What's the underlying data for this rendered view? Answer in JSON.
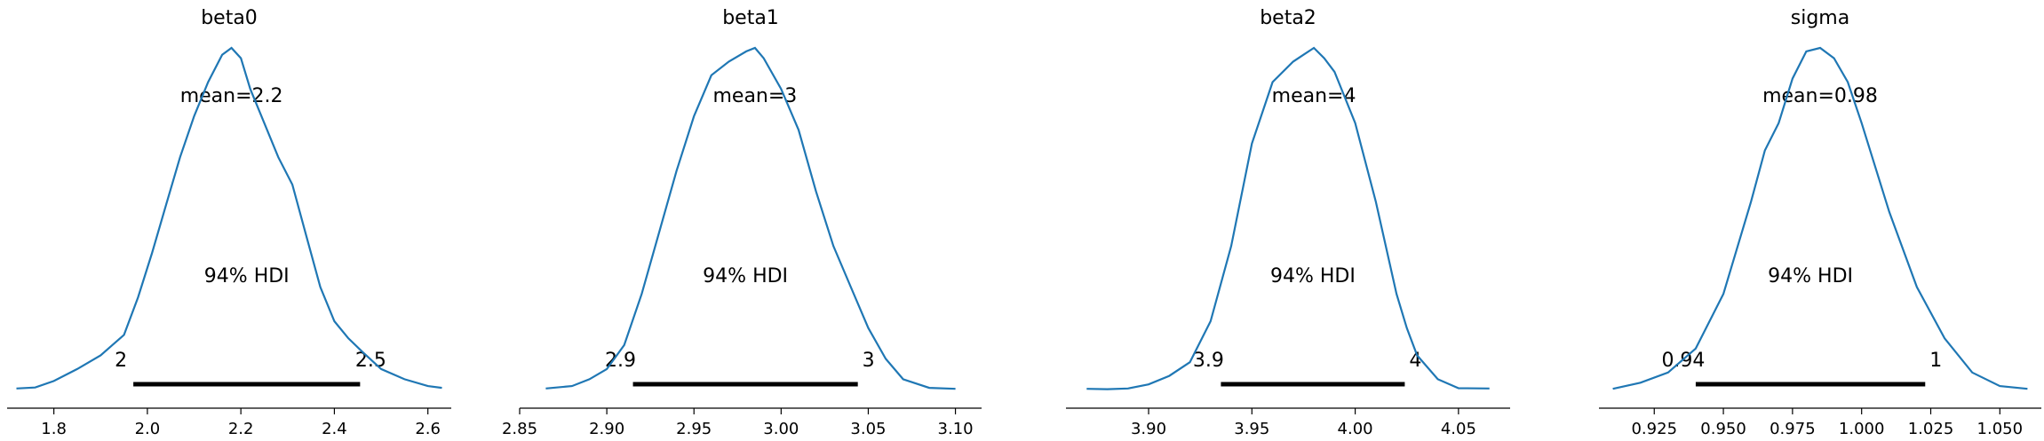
{
  "chart_data": [
    {
      "type": "line",
      "title": "beta0",
      "mean_label": "mean=2.2",
      "hdi_label": "94% HDI",
      "hdi": [
        1.97,
        2.455
      ],
      "hdi_low_label": "2",
      "hdi_high_label": "2.5",
      "xlim": [
        1.7,
        2.65
      ],
      "xticks": [
        1.8,
        2.0,
        2.2,
        2.4,
        2.6
      ],
      "xtick_labels": [
        "1.8",
        "2.0",
        "2.2",
        "2.4",
        "2.6"
      ],
      "density_x": [
        1.72,
        1.76,
        1.8,
        1.85,
        1.9,
        1.95,
        1.98,
        2.01,
        2.04,
        2.07,
        2.1,
        2.13,
        2.16,
        2.18,
        2.2,
        2.22,
        2.25,
        2.28,
        2.31,
        2.34,
        2.37,
        2.4,
        2.43,
        2.46,
        2.5,
        2.55,
        2.6,
        2.63
      ],
      "density_y": [
        0.003,
        0.006,
        0.025,
        0.06,
        0.1,
        0.16,
        0.27,
        0.4,
        0.54,
        0.68,
        0.8,
        0.9,
        0.98,
        1.0,
        0.97,
        0.88,
        0.78,
        0.68,
        0.6,
        0.45,
        0.3,
        0.2,
        0.15,
        0.11,
        0.06,
        0.03,
        0.01,
        0.005
      ]
    },
    {
      "type": "line",
      "title": "beta1",
      "mean_label": "mean=3",
      "hdi_label": "94% HDI",
      "hdi": [
        2.915,
        3.044
      ],
      "hdi_low_label": "2.9",
      "hdi_high_label": "3",
      "xlim": [
        2.85,
        3.115
      ],
      "xticks": [
        2.85,
        2.9,
        2.95,
        3.0,
        3.05,
        3.1
      ],
      "xtick_labels": [
        "2.85",
        "2.90",
        "2.95",
        "3.00",
        "3.05",
        "3.10"
      ],
      "density_x": [
        2.865,
        2.88,
        2.89,
        2.9,
        2.91,
        2.92,
        2.93,
        2.94,
        2.95,
        2.96,
        2.97,
        2.98,
        2.985,
        2.99,
        3.0,
        3.01,
        3.02,
        3.03,
        3.04,
        3.05,
        3.06,
        3.07,
        3.085,
        3.1
      ],
      "density_y": [
        0.003,
        0.01,
        0.03,
        0.06,
        0.13,
        0.28,
        0.46,
        0.64,
        0.8,
        0.92,
        0.96,
        0.99,
        1.0,
        0.97,
        0.88,
        0.76,
        0.58,
        0.42,
        0.3,
        0.18,
        0.09,
        0.03,
        0.005,
        0.002
      ]
    },
    {
      "type": "line",
      "title": "beta2",
      "mean_label": "mean=4",
      "hdi_label": "94% HDI",
      "hdi": [
        3.935,
        4.024
      ],
      "hdi_low_label": "3.9",
      "hdi_high_label": "4",
      "xlim": [
        3.86,
        4.075
      ],
      "xticks": [
        3.9,
        3.95,
        4.0,
        4.05
      ],
      "xtick_labels": [
        "3.90",
        "3.95",
        "4.00",
        "4.05"
      ],
      "density_x": [
        3.87,
        3.88,
        3.89,
        3.9,
        3.91,
        3.92,
        3.93,
        3.94,
        3.95,
        3.96,
        3.97,
        3.975,
        3.98,
        3.985,
        3.99,
        4.0,
        4.01,
        4.02,
        4.025,
        4.03,
        4.04,
        4.05,
        4.065
      ],
      "density_y": [
        0.002,
        0.001,
        0.003,
        0.015,
        0.04,
        0.08,
        0.2,
        0.42,
        0.72,
        0.9,
        0.96,
        0.98,
        1.0,
        0.97,
        0.93,
        0.78,
        0.55,
        0.28,
        0.18,
        0.1,
        0.03,
        0.004,
        0.003
      ]
    },
    {
      "type": "line",
      "title": "sigma",
      "mean_label": "mean=0.98",
      "hdi_label": "94% HDI",
      "hdi": [
        0.94,
        1.023
      ],
      "hdi_low_label": "0.94",
      "hdi_high_label": "1",
      "xlim": [
        0.905,
        1.065
      ],
      "xticks": [
        0.925,
        0.95,
        0.975,
        1.0,
        1.025,
        1.05
      ],
      "xtick_labels": [
        "0.925",
        "0.950",
        "0.975",
        "1.000",
        "1.025",
        "1.050"
      ],
      "density_x": [
        0.91,
        0.92,
        0.93,
        0.94,
        0.95,
        0.96,
        0.965,
        0.97,
        0.975,
        0.98,
        0.985,
        0.99,
        0.995,
        1.0,
        1.01,
        1.02,
        1.03,
        1.04,
        1.05,
        1.06
      ],
      "density_y": [
        0.002,
        0.02,
        0.05,
        0.12,
        0.28,
        0.55,
        0.7,
        0.78,
        0.91,
        0.99,
        1.0,
        0.97,
        0.9,
        0.78,
        0.52,
        0.3,
        0.15,
        0.05,
        0.01,
        0.002
      ]
    }
  ]
}
